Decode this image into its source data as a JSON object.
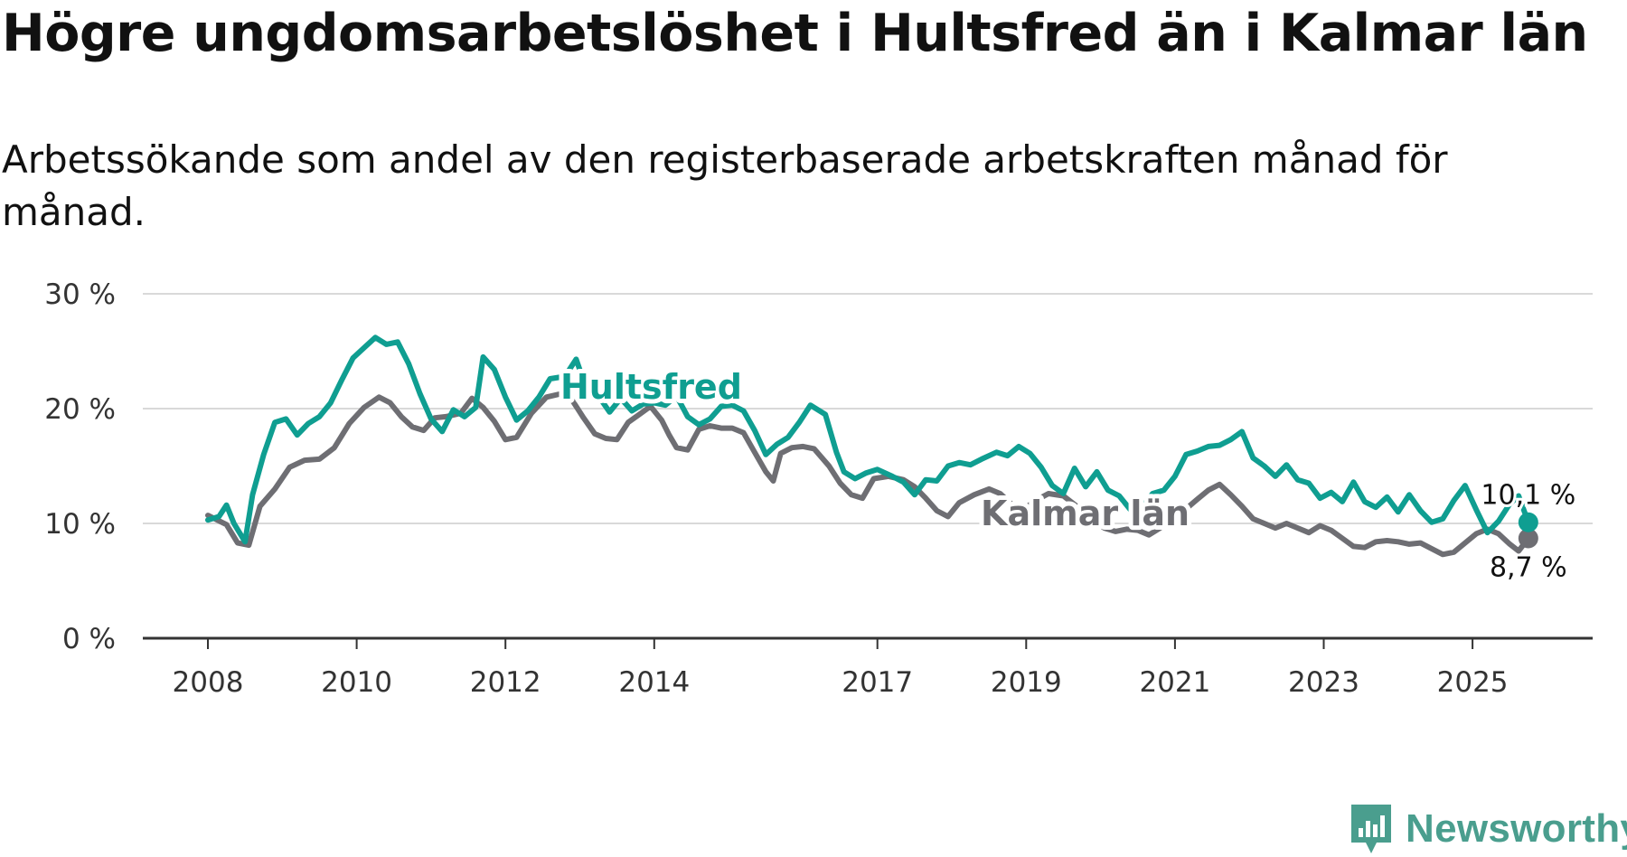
{
  "title": "Högre ungdomsarbetslöshet i Hultsfred än i Kalmar län",
  "subtitle": "Arbetssökande som andel av den registerbaserade arbetskraften månad för månad.",
  "brand": {
    "name": "Newsworthy",
    "icon": "newsworthy-logo-icon",
    "color": "#4a9e8e"
  },
  "chart_data": {
    "type": "line",
    "title": "Högre ungdomsarbetslöshet i Hultsfred än i Kalmar län",
    "subtitle": "Arbetssökande som andel av den registerbaserade arbetskraften månad för månad.",
    "xlabel": "",
    "ylabel": "",
    "xlim": [
      2008.0,
      2025.75
    ],
    "ylim": [
      0,
      30
    ],
    "grid": true,
    "y_ticks": [
      {
        "value": 0,
        "label": "0 %"
      },
      {
        "value": 10,
        "label": "10 %"
      },
      {
        "value": 20,
        "label": "20 %"
      },
      {
        "value": 30,
        "label": "30 %"
      }
    ],
    "x_ticks": [
      {
        "value": 2008,
        "label": "2008"
      },
      {
        "value": 2010,
        "label": "2010"
      },
      {
        "value": 2012,
        "label": "2012"
      },
      {
        "value": 2014,
        "label": "2014"
      },
      {
        "value": 2017,
        "label": "2017"
      },
      {
        "value": 2019,
        "label": "2019"
      },
      {
        "value": 2021,
        "label": "2021"
      },
      {
        "value": 2023,
        "label": "2023"
      },
      {
        "value": 2025,
        "label": "2025"
      }
    ],
    "series": [
      {
        "name": "Kalmar län",
        "label": "Kalmar län",
        "color": "#6e6e73",
        "end_value_label": "8,7 %",
        "points": [
          [
            2008.0,
            10.7
          ],
          [
            2008.25,
            9.9
          ],
          [
            2008.4,
            8.3
          ],
          [
            2008.55,
            8.1
          ],
          [
            2008.7,
            11.5
          ],
          [
            2008.9,
            13.0
          ],
          [
            2009.1,
            14.9
          ],
          [
            2009.3,
            15.5
          ],
          [
            2009.5,
            15.6
          ],
          [
            2009.7,
            16.6
          ],
          [
            2009.9,
            18.7
          ],
          [
            2010.1,
            20.1
          ],
          [
            2010.3,
            21.0
          ],
          [
            2010.45,
            20.5
          ],
          [
            2010.6,
            19.3
          ],
          [
            2010.75,
            18.4
          ],
          [
            2010.9,
            18.1
          ],
          [
            2011.05,
            19.2
          ],
          [
            2011.2,
            19.3
          ],
          [
            2011.4,
            19.6
          ],
          [
            2011.55,
            20.9
          ],
          [
            2011.7,
            20.1
          ],
          [
            2011.85,
            18.9
          ],
          [
            2012.0,
            17.3
          ],
          [
            2012.15,
            17.5
          ],
          [
            2012.35,
            19.6
          ],
          [
            2012.55,
            21.0
          ],
          [
            2012.75,
            21.3
          ],
          [
            2012.9,
            20.7
          ],
          [
            2013.05,
            19.2
          ],
          [
            2013.2,
            17.8
          ],
          [
            2013.35,
            17.4
          ],
          [
            2013.5,
            17.3
          ],
          [
            2013.65,
            18.8
          ],
          [
            2013.8,
            19.5
          ],
          [
            2013.95,
            20.2
          ],
          [
            2014.1,
            19.0
          ],
          [
            2014.2,
            17.7
          ],
          [
            2014.3,
            16.6
          ],
          [
            2014.45,
            16.4
          ],
          [
            2014.6,
            18.2
          ],
          [
            2014.75,
            18.5
          ],
          [
            2014.9,
            18.3
          ],
          [
            2015.05,
            18.3
          ],
          [
            2015.2,
            17.9
          ],
          [
            2015.35,
            16.2
          ],
          [
            2015.5,
            14.5
          ],
          [
            2015.6,
            13.7
          ],
          [
            2015.7,
            16.1
          ],
          [
            2015.85,
            16.6
          ],
          [
            2016.0,
            16.7
          ],
          [
            2016.15,
            16.5
          ],
          [
            2016.35,
            15.0
          ],
          [
            2016.5,
            13.5
          ],
          [
            2016.65,
            12.5
          ],
          [
            2016.8,
            12.2
          ],
          [
            2016.95,
            13.9
          ],
          [
            2017.15,
            14.1
          ],
          [
            2017.35,
            13.8
          ],
          [
            2017.5,
            13.2
          ],
          [
            2017.65,
            12.2
          ],
          [
            2017.8,
            11.1
          ],
          [
            2017.95,
            10.6
          ],
          [
            2018.1,
            11.8
          ],
          [
            2018.3,
            12.5
          ],
          [
            2018.5,
            13.0
          ],
          [
            2018.65,
            12.6
          ],
          [
            2018.8,
            11.7
          ],
          [
            2018.95,
            11.1
          ],
          [
            2019.1,
            11.9
          ],
          [
            2019.3,
            12.6
          ],
          [
            2019.5,
            12.4
          ],
          [
            2019.7,
            11.4
          ],
          [
            2019.9,
            10.3
          ],
          [
            2020.05,
            9.6
          ],
          [
            2020.2,
            9.3
          ],
          [
            2020.35,
            9.5
          ],
          [
            2020.5,
            9.4
          ],
          [
            2020.65,
            9.0
          ],
          [
            2020.8,
            9.6
          ],
          [
            2020.95,
            10.3
          ],
          [
            2021.1,
            11.0
          ],
          [
            2021.3,
            12.1
          ],
          [
            2021.45,
            12.9
          ],
          [
            2021.6,
            13.4
          ],
          [
            2021.75,
            12.5
          ],
          [
            2021.9,
            11.5
          ],
          [
            2022.05,
            10.4
          ],
          [
            2022.2,
            10.0
          ],
          [
            2022.35,
            9.6
          ],
          [
            2022.5,
            10.0
          ],
          [
            2022.65,
            9.6
          ],
          [
            2022.8,
            9.2
          ],
          [
            2022.95,
            9.8
          ],
          [
            2023.1,
            9.4
          ],
          [
            2023.25,
            8.7
          ],
          [
            2023.4,
            8.0
          ],
          [
            2023.55,
            7.9
          ],
          [
            2023.7,
            8.4
          ],
          [
            2023.85,
            8.5
          ],
          [
            2024.0,
            8.4
          ],
          [
            2024.15,
            8.2
          ],
          [
            2024.3,
            8.3
          ],
          [
            2024.45,
            7.8
          ],
          [
            2024.6,
            7.3
          ],
          [
            2024.75,
            7.5
          ],
          [
            2024.9,
            8.3
          ],
          [
            2025.05,
            9.1
          ],
          [
            2025.2,
            9.5
          ],
          [
            2025.35,
            9.1
          ],
          [
            2025.5,
            8.2
          ],
          [
            2025.62,
            7.6
          ],
          [
            2025.75,
            8.7
          ]
        ]
      },
      {
        "name": "Hultsfred",
        "label": "Hultsfred",
        "color": "#0f9e91",
        "end_value_label": "10,1 %",
        "points": [
          [
            2008.0,
            10.3
          ],
          [
            2008.15,
            10.6
          ],
          [
            2008.25,
            11.6
          ],
          [
            2008.35,
            10.0
          ],
          [
            2008.5,
            8.4
          ],
          [
            2008.6,
            12.5
          ],
          [
            2008.75,
            16.0
          ],
          [
            2008.9,
            18.8
          ],
          [
            2009.05,
            19.1
          ],
          [
            2009.2,
            17.7
          ],
          [
            2009.35,
            18.7
          ],
          [
            2009.5,
            19.3
          ],
          [
            2009.65,
            20.5
          ],
          [
            2009.8,
            22.5
          ],
          [
            2009.95,
            24.4
          ],
          [
            2010.1,
            25.3
          ],
          [
            2010.25,
            26.2
          ],
          [
            2010.4,
            25.6
          ],
          [
            2010.55,
            25.8
          ],
          [
            2010.7,
            23.9
          ],
          [
            2010.85,
            21.3
          ],
          [
            2011.0,
            19.1
          ],
          [
            2011.15,
            18.0
          ],
          [
            2011.3,
            19.9
          ],
          [
            2011.45,
            19.3
          ],
          [
            2011.6,
            20.1
          ],
          [
            2011.7,
            24.5
          ],
          [
            2011.85,
            23.4
          ],
          [
            2012.0,
            21.0
          ],
          [
            2012.15,
            19.0
          ],
          [
            2012.3,
            19.8
          ],
          [
            2012.45,
            21.0
          ],
          [
            2012.6,
            22.6
          ],
          [
            2012.8,
            22.8
          ],
          [
            2012.95,
            24.3
          ],
          [
            2013.1,
            21.5
          ],
          [
            2013.25,
            21.1
          ],
          [
            2013.4,
            19.7
          ],
          [
            2013.55,
            20.9
          ],
          [
            2013.7,
            19.8
          ],
          [
            2013.85,
            20.4
          ],
          [
            2014.0,
            20.5
          ],
          [
            2014.15,
            20.3
          ],
          [
            2014.3,
            21.1
          ],
          [
            2014.45,
            19.3
          ],
          [
            2014.6,
            18.6
          ],
          [
            2014.75,
            19.1
          ],
          [
            2014.9,
            20.2
          ],
          [
            2015.05,
            20.3
          ],
          [
            2015.2,
            19.8
          ],
          [
            2015.35,
            18.1
          ],
          [
            2015.5,
            16.0
          ],
          [
            2015.65,
            16.9
          ],
          [
            2015.8,
            17.5
          ],
          [
            2015.95,
            18.8
          ],
          [
            2016.1,
            20.3
          ],
          [
            2016.3,
            19.5
          ],
          [
            2016.45,
            16.2
          ],
          [
            2016.55,
            14.5
          ],
          [
            2016.7,
            13.9
          ],
          [
            2016.85,
            14.4
          ],
          [
            2017.0,
            14.7
          ],
          [
            2017.2,
            14.1
          ],
          [
            2017.35,
            13.6
          ],
          [
            2017.5,
            12.5
          ],
          [
            2017.65,
            13.8
          ],
          [
            2017.8,
            13.7
          ],
          [
            2017.95,
            15.0
          ],
          [
            2018.1,
            15.3
          ],
          [
            2018.25,
            15.1
          ],
          [
            2018.4,
            15.6
          ],
          [
            2018.6,
            16.2
          ],
          [
            2018.75,
            15.9
          ],
          [
            2018.9,
            16.7
          ],
          [
            2019.05,
            16.1
          ],
          [
            2019.2,
            14.9
          ],
          [
            2019.35,
            13.3
          ],
          [
            2019.5,
            12.6
          ],
          [
            2019.65,
            14.8
          ],
          [
            2019.8,
            13.2
          ],
          [
            2019.95,
            14.5
          ],
          [
            2020.1,
            12.9
          ],
          [
            2020.25,
            12.4
          ],
          [
            2020.4,
            11.2
          ],
          [
            2020.55,
            11.4
          ],
          [
            2020.7,
            12.6
          ],
          [
            2020.85,
            12.9
          ],
          [
            2021.0,
            14.1
          ],
          [
            2021.15,
            16.0
          ],
          [
            2021.3,
            16.3
          ],
          [
            2021.45,
            16.7
          ],
          [
            2021.6,
            16.8
          ],
          [
            2021.75,
            17.3
          ],
          [
            2021.9,
            18.0
          ],
          [
            2022.05,
            15.7
          ],
          [
            2022.2,
            15.0
          ],
          [
            2022.35,
            14.1
          ],
          [
            2022.5,
            15.1
          ],
          [
            2022.65,
            13.8
          ],
          [
            2022.8,
            13.5
          ],
          [
            2022.95,
            12.2
          ],
          [
            2023.1,
            12.7
          ],
          [
            2023.25,
            11.9
          ],
          [
            2023.4,
            13.6
          ],
          [
            2023.55,
            11.9
          ],
          [
            2023.7,
            11.4
          ],
          [
            2023.85,
            12.3
          ],
          [
            2024.0,
            11.0
          ],
          [
            2024.15,
            12.5
          ],
          [
            2024.3,
            11.1
          ],
          [
            2024.45,
            10.1
          ],
          [
            2024.6,
            10.4
          ],
          [
            2024.75,
            12.0
          ],
          [
            2024.9,
            13.3
          ],
          [
            2025.05,
            11.2
          ],
          [
            2025.2,
            9.2
          ],
          [
            2025.35,
            10.2
          ],
          [
            2025.5,
            11.7
          ],
          [
            2025.62,
            12.4
          ],
          [
            2025.75,
            10.1
          ]
        ]
      }
    ]
  }
}
